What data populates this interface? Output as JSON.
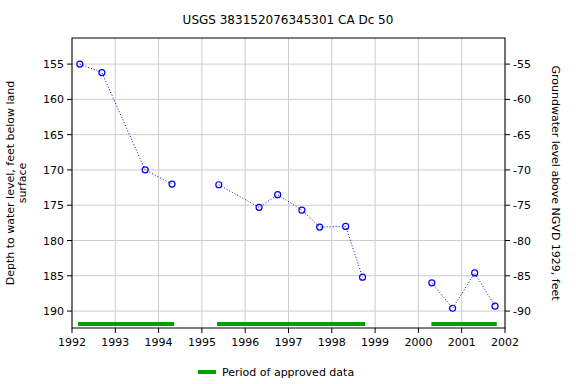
{
  "chart_data": {
    "type": "line",
    "title": "USGS 383152076345301 CA Dc  50",
    "y_label": [
      "Depth to water level, feet below land",
      "surface"
    ],
    "y2_label": "Groundwater level above NGVD 1929, feet",
    "legend_label": "Period of approved data",
    "x": [
      1992.18,
      1992.69,
      1993.69,
      1994.31,
      1994.85,
      1995.39,
      1996.32,
      1996.75,
      1997.31,
      1997.72,
      1998.32,
      1998.71,
      1999.5,
      2000.31,
      2000.79,
      2001.3,
      2001.77
    ],
    "series": [
      {
        "name": "Depth to water level",
        "color": "#0000ee",
        "marker": "circle",
        "line_style": "dotted",
        "values": [
          155.0,
          156.2,
          170.0,
          172.0,
          null,
          172.1,
          175.3,
          173.5,
          175.7,
          178.1,
          178.0,
          185.2,
          null,
          186.0,
          189.6,
          184.6,
          189.3
        ]
      }
    ],
    "approved_periods": [
      [
        1992.14,
        1994.36
      ],
      [
        1995.35,
        1998.77
      ],
      [
        2000.3,
        2001.81
      ]
    ],
    "approved_color": "#00a000",
    "xlim": [
      1992,
      2002
    ],
    "xticks": [
      1992,
      1993,
      1994,
      1995,
      1996,
      1997,
      1998,
      1999,
      2000,
      2001,
      2002
    ],
    "ylim": [
      192.4,
      151.3
    ],
    "yticks": [
      155,
      160,
      165,
      170,
      175,
      180,
      185,
      190
    ],
    "y2lim": [
      -92.4,
      -51.3
    ],
    "y2ticks": [
      -55,
      -60,
      -65,
      -70,
      -75,
      -80,
      -85,
      -90
    ],
    "grid": true
  }
}
